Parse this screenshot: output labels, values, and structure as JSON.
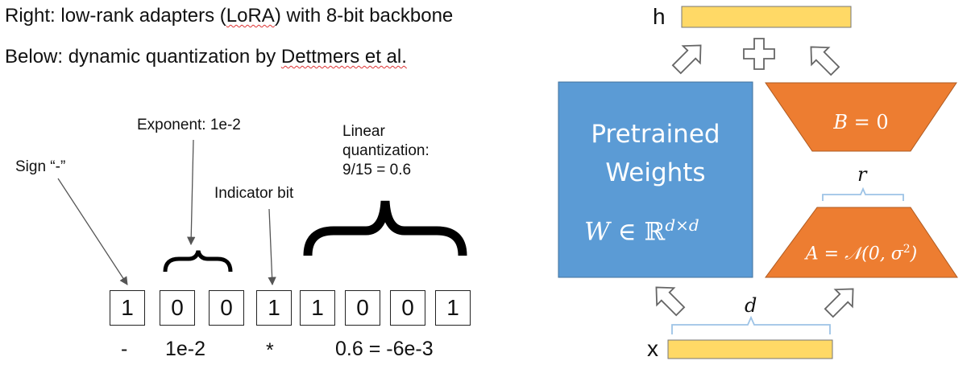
{
  "header": {
    "line1_prefix": "Right: low-rank adapters (",
    "line1_squiggle": "LoRA",
    "line1_suffix": ") with 8-bit backbone",
    "line2_prefix": "Below: dynamic quantization by ",
    "line2_squiggle": "Dettmers et al."
  },
  "quantization": {
    "labels": {
      "sign": "Sign “-”",
      "exponent": "Exponent: 1e-2",
      "indicator": "Indicator bit",
      "linear_1": "Linear",
      "linear_2": "quantization:",
      "linear_3": "9/15 = 0.6"
    },
    "bits": [
      "1",
      "0",
      "0",
      "1",
      "1",
      "0",
      "0",
      "1"
    ],
    "bottom": {
      "sign": "-",
      "exponent": "1e-2",
      "times": "*",
      "result": "0.6  = -6e-3"
    }
  },
  "lora": {
    "h_label": "h",
    "x_label": "x",
    "pretrained_line1": "Pretrained",
    "pretrained_line2": "Weights",
    "W_symbol": "W",
    "in_symbol": "∈",
    "R_symbol": "ℝ",
    "W_superscript": "d×d",
    "B_symbol": "B",
    "B_eq": "= 0",
    "A_symbol": "A",
    "A_eq": "= 𝒩(0, σ",
    "A_sq": "2",
    "A_close": ")",
    "r_label": "r",
    "d_label": "d",
    "colors": {
      "blue": "#5b9bd5",
      "orange": "#ed7d31",
      "yellow": "#ffd966",
      "brace": "#9dc3e6"
    }
  }
}
